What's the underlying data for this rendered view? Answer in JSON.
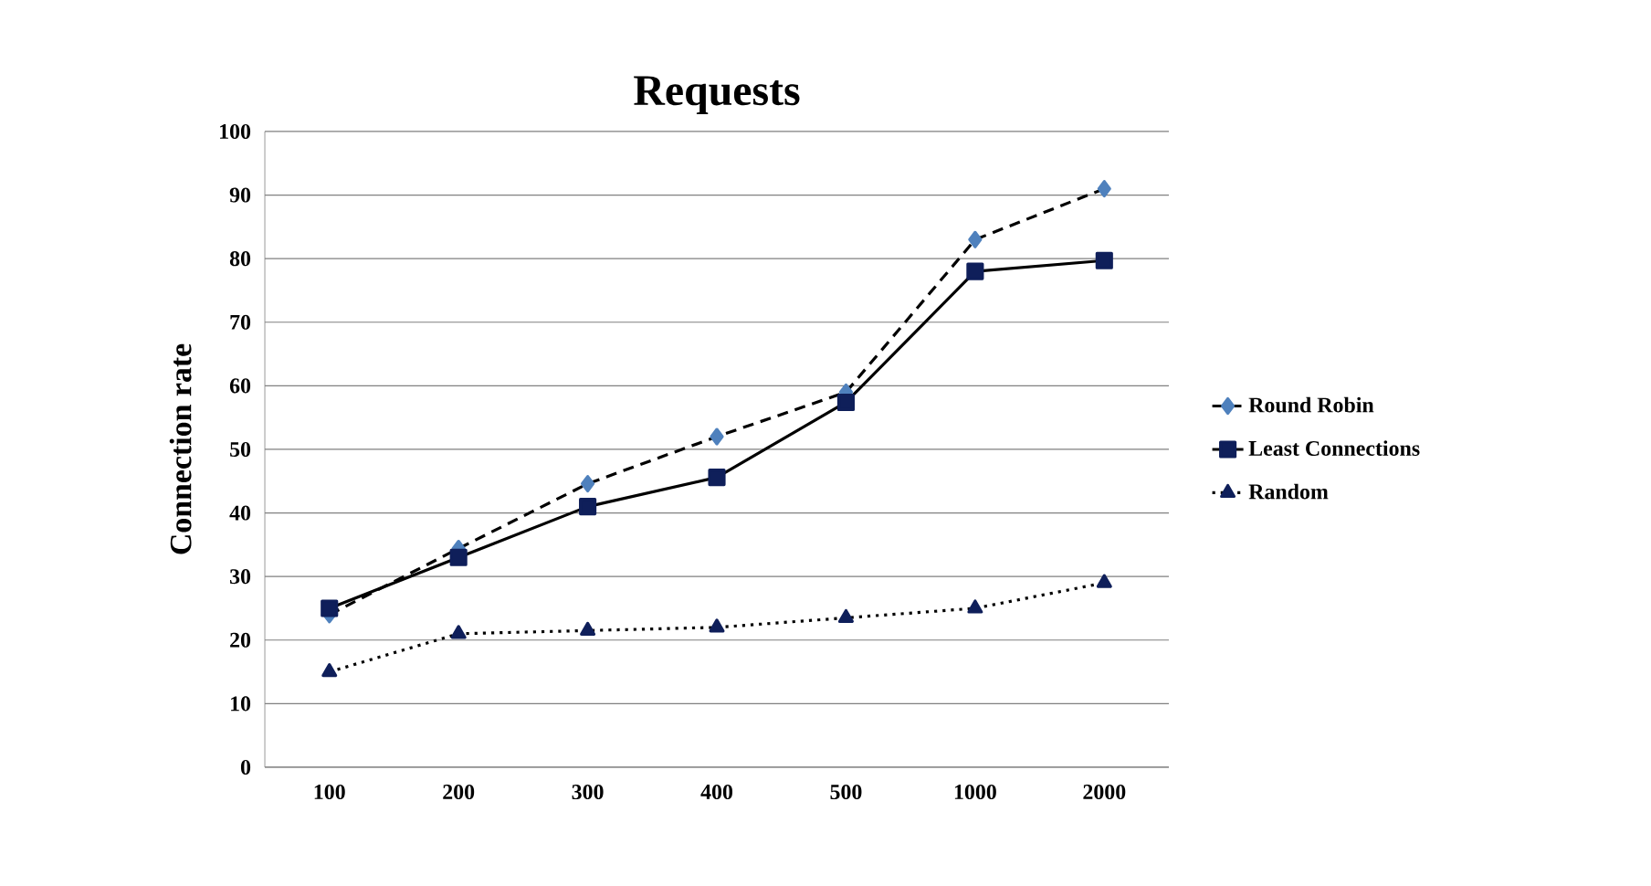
{
  "chart_data": {
    "type": "line",
    "title": "Requests",
    "ylabel": "Connection rate",
    "categories": [
      "100",
      "200",
      "300",
      "400",
      "500",
      "1000",
      "2000"
    ],
    "ylim": [
      0,
      100
    ],
    "yticks": [
      0,
      10,
      20,
      30,
      40,
      50,
      60,
      70,
      80,
      90,
      100
    ],
    "grid": "y",
    "legend": "right",
    "series": [
      {
        "name": "Round Robin",
        "color": "#4f81bd",
        "marker": "diamond",
        "line_style": "dashed",
        "values": [
          24,
          34.4,
          44.6,
          52,
          59,
          83,
          91
        ]
      },
      {
        "name": "Least Connections",
        "color": "#0f1f5a",
        "marker": "square",
        "line_style": "solid",
        "values": [
          25,
          33,
          41,
          45.6,
          57.4,
          78,
          79.7
        ]
      },
      {
        "name": "Random",
        "color": "#0f1f5a",
        "marker": "triangle",
        "line_style": "dotted",
        "values": [
          15,
          21,
          21.5,
          22,
          23.5,
          25,
          29
        ]
      }
    ]
  }
}
